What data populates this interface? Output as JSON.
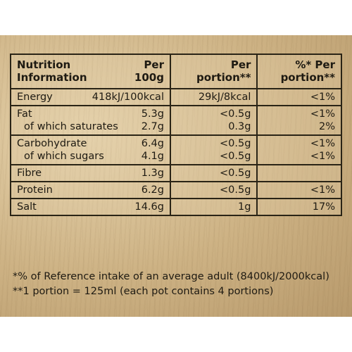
{
  "table": {
    "header": {
      "col1": [
        "Nutrition",
        "Information"
      ],
      "col2": [
        "Per",
        "100g"
      ],
      "col3": [
        "Per",
        "portion**"
      ],
      "col4": [
        "%* Per",
        "portion**"
      ]
    },
    "rows": [
      {
        "lines": [
          {
            "label": "Energy",
            "per100": "418kJ/100kcal",
            "portion": "29kJ/8kcal",
            "ri": "<1%"
          }
        ]
      },
      {
        "lines": [
          {
            "label": "Fat",
            "per100": "5.3g",
            "portion": "<0.5g",
            "ri": "<1%"
          },
          {
            "label": "of which saturates",
            "per100": "2.7g",
            "portion": "0.3g",
            "ri": "2%"
          }
        ]
      },
      {
        "lines": [
          {
            "label": "Carbohydrate",
            "per100": "6.4g",
            "portion": "<0.5g",
            "ri": "<1%"
          },
          {
            "label": "of which sugars",
            "per100": "4.1g",
            "portion": "<0.5g",
            "ri": "<1%"
          }
        ]
      },
      {
        "lines": [
          {
            "label": "Fibre",
            "per100": "1.3g",
            "portion": "<0.5g",
            "ri": ""
          }
        ]
      },
      {
        "lines": [
          {
            "label": "Protein",
            "per100": "6.2g",
            "portion": "<0.5g",
            "ri": "<1%"
          }
        ]
      },
      {
        "lines": [
          {
            "label": "Salt",
            "per100": "14.6g",
            "portion": "1g",
            "ri": "17%"
          }
        ]
      }
    ]
  },
  "footnotes": [
    "*% of Reference intake of an average adult (8400kJ/2000kcal)",
    "**1 portion = 125ml (each pot contains 4 portions)"
  ]
}
